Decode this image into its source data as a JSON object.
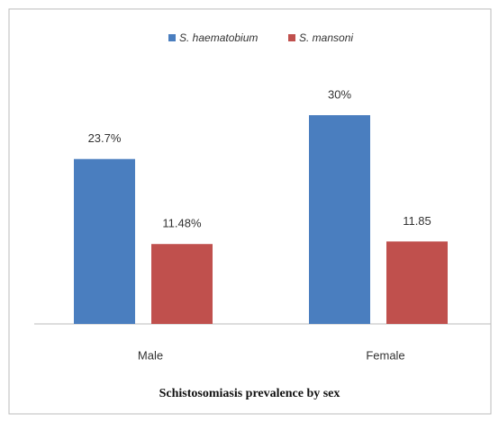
{
  "chart_data": {
    "type": "bar",
    "title": "Schistosomiasis prevalence by sex",
    "categories": [
      "Male",
      "Female"
    ],
    "series": [
      {
        "name": "S. haematobium",
        "color": "#4a7ebf",
        "values": [
          23.7,
          30
        ],
        "value_labels": [
          "23.7%",
          "30%"
        ]
      },
      {
        "name": "S. mansoni",
        "color": "#c0504d",
        "values": [
          11.48,
          11.85
        ],
        "value_labels": [
          "11.48%",
          "11.85"
        ]
      }
    ],
    "legend": "top"
  }
}
